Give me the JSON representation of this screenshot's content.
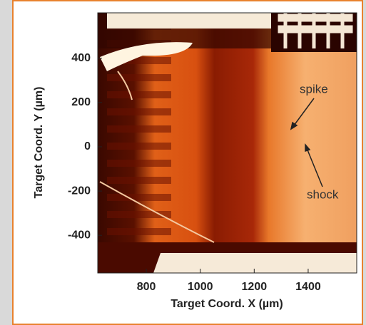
{
  "chart_data": {
    "type": "image",
    "xlabel": "Target Coord. X (µm)",
    "ylabel": "Target Coord. Y (µm)",
    "xlim": [
      620,
      1580
    ],
    "xticks": [
      800,
      1000,
      1200,
      1400
    ],
    "ylim": [
      -570,
      605
    ],
    "yticks": [
      400,
      200,
      0,
      -200,
      -400
    ],
    "annotations": [
      "spike",
      "shock"
    ]
  }
}
